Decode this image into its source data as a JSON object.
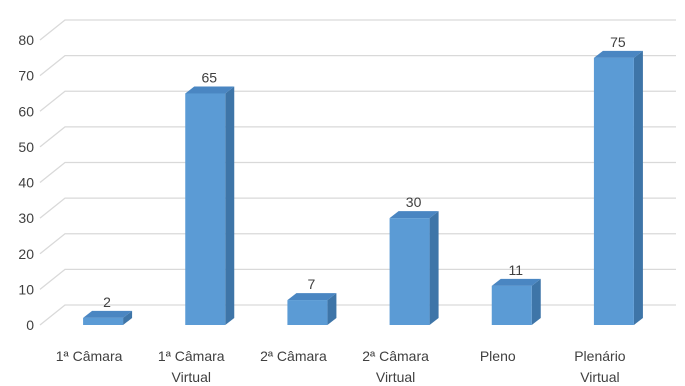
{
  "chart_data": {
    "type": "bar",
    "style": "3d-column",
    "categories": [
      [
        "1ª Câmara"
      ],
      [
        "1ª Câmara",
        "Virtual"
      ],
      [
        "2ª Câmara"
      ],
      [
        "2ª Câmara",
        "Virtual"
      ],
      [
        "Pleno"
      ],
      [
        "Plenário",
        "Virtual"
      ]
    ],
    "values": [
      2,
      65,
      7,
      30,
      11,
      75
    ],
    "title": "",
    "xlabel": "",
    "ylabel": "",
    "ylim": [
      0,
      80
    ],
    "yticks": [
      0,
      10,
      20,
      30,
      40,
      50,
      60,
      70,
      80
    ],
    "grid": true,
    "legend": "none",
    "colors": {
      "bar_front": "#5B9BD5",
      "bar_side": "#3E75A8",
      "bar_top": "#4A86C2",
      "grid": "#d9d9d9",
      "text": "#404040"
    }
  }
}
